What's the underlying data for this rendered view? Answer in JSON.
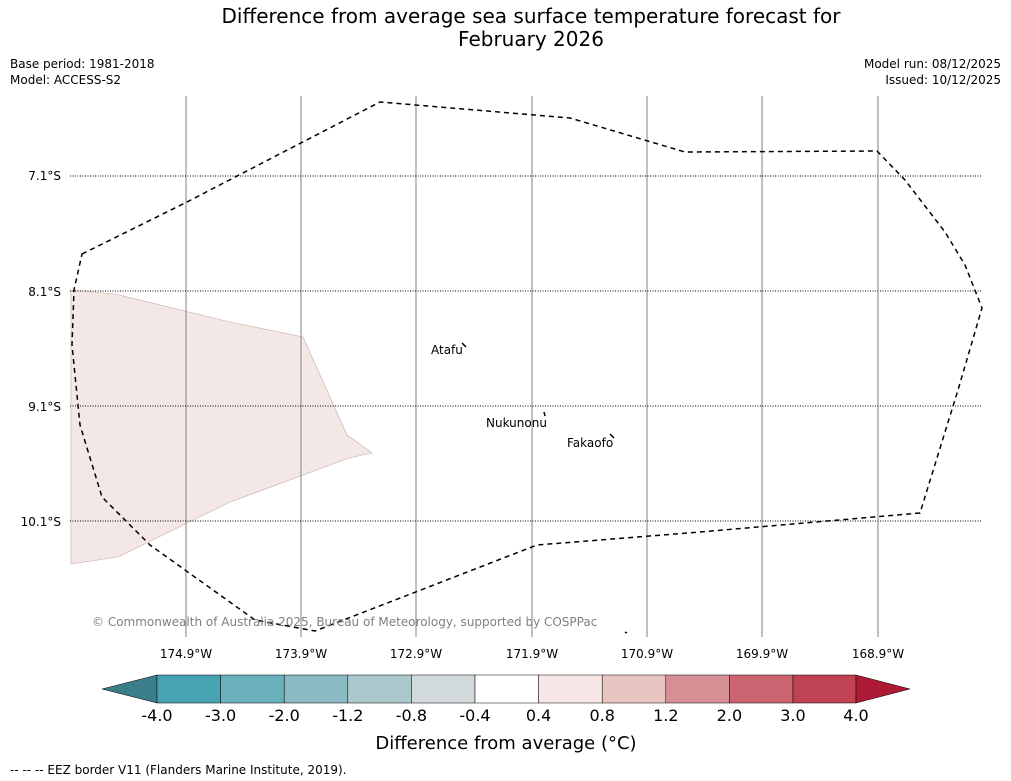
{
  "title": {
    "line1": "Difference from average sea surface temperature forecast for",
    "line2": "February 2026"
  },
  "meta_left": {
    "base_period": "Base period: 1981-2018",
    "model": "Model: ACCESS-S2"
  },
  "meta_right": {
    "model_run": "Model run: 08/12/2025",
    "issued": "Issued: 10/12/2025"
  },
  "map": {
    "lon_ticks": [
      "174.9°W",
      "173.9°W",
      "172.9°W",
      "171.9°W",
      "170.9°W",
      "169.9°W",
      "168.9°W"
    ],
    "lat_ticks": [
      "7.1°S",
      "8.1°S",
      "9.1°S",
      "10.1°S"
    ],
    "places": [
      {
        "name": "Atafu"
      },
      {
        "name": "Nukunonu"
      },
      {
        "name": "Fakaofo"
      }
    ],
    "copyright": "© Commonwealth of Australia 2025, Bureau of Meteorology, supported by COSPPac",
    "anomaly_region_label": "0.4 to 0.8 °C anomaly"
  },
  "colorbar": {
    "tick_labels": [
      "-4.0",
      "-3.0",
      "-2.0",
      "-1.2",
      "-0.8",
      "-0.4",
      "0.4",
      "0.8",
      "1.2",
      "2.0",
      "3.0",
      "4.0"
    ],
    "colors": [
      "#3a7e8a",
      "#47a3b2",
      "#6bb0bd",
      "#8cbac3",
      "#abc8cc",
      "#d2d9da",
      "#ffffff",
      "#f6e7e6",
      "#e8c5c1",
      "#d58f95",
      "#cc6571",
      "#bf4352",
      "#ad1a36"
    ],
    "label": "Difference from average (°C)"
  },
  "footer": "--  --  -- EEZ border V11 (Flanders Marine Institute, 2019).",
  "colors": {
    "grid": "#808080",
    "anomaly_fill": "#f4e8e6",
    "eez_border": "#000000"
  }
}
